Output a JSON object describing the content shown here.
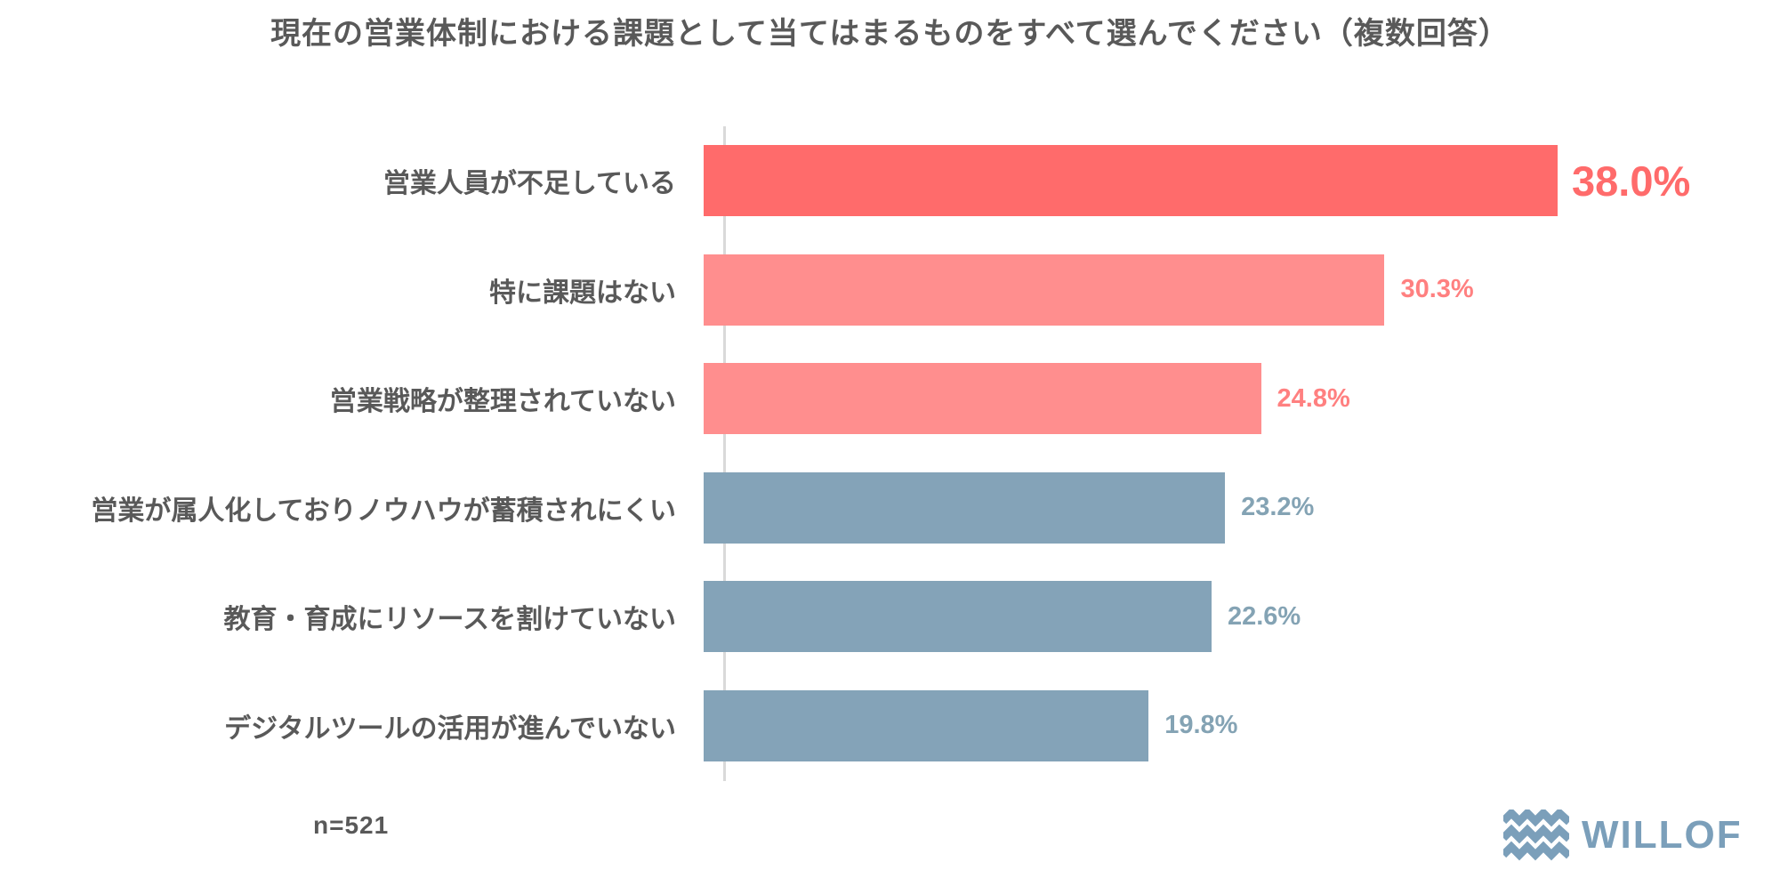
{
  "title": "現在の営業体制における課題として当てはまるものをすべて選んでください（複数回答）",
  "footnote": "n=521",
  "logo": {
    "text": "WILLOF",
    "icon": "waves-icon",
    "color": "#7b9fba"
  },
  "colors": {
    "accent_red": "#ff6b6b",
    "pink": "#ff8e8e",
    "gray_blue": "#84a3b8",
    "text_gray": "#595959",
    "axis_gray": "#d9d9d9"
  },
  "chart_data": {
    "type": "bar",
    "orientation": "horizontal",
    "title": "現在の営業体制における課題として当てはまるものをすべて選んでください（複数回答）",
    "xlabel": "",
    "ylabel": "",
    "xlim": [
      0,
      40
    ],
    "grid": false,
    "legend": false,
    "sample_size": 521,
    "categories": [
      "営業人員が不足している",
      "特に課題はない",
      "営業戦略が整理されていない",
      "営業が属人化しておりノウハウが蓄積されにくい",
      "教育・育成にリソースを割けていない",
      "デジタルツールの活用が進んでいない"
    ],
    "values": [
      38.0,
      30.3,
      24.8,
      23.2,
      22.6,
      19.8
    ],
    "value_labels": [
      "38.0%",
      "30.3%",
      "24.8%",
      "23.2%",
      "22.6%",
      "19.8%"
    ],
    "bar_colors": [
      "#ff6b6b",
      "#ff8e8e",
      "#ff8e8e",
      "#84a3b8",
      "#84a3b8",
      "#84a3b8"
    ],
    "value_label_colors": [
      "#ff6b6b",
      "#ff8080",
      "#ff8080",
      "#84a3b4",
      "#84a3b4",
      "#84a3b4"
    ],
    "emphasized_index": 0
  }
}
